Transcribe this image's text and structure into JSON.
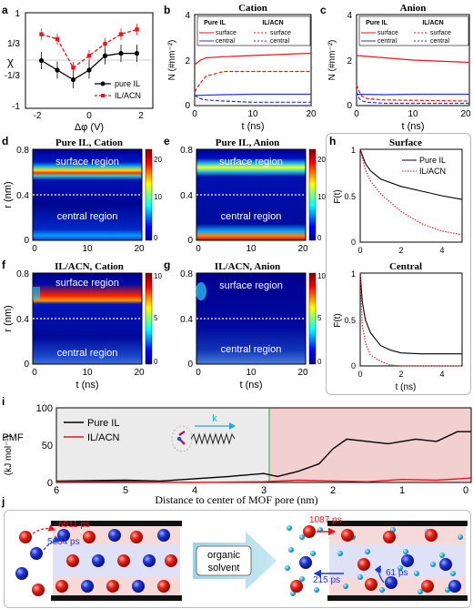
{
  "panels": {
    "a": {
      "label": "a",
      "ylabel": "χ",
      "xlabel": "Δφ (V)",
      "yticks": [
        "1",
        "1/3",
        "-1/3",
        "-1"
      ],
      "xticks": [
        "-2",
        "0",
        "2"
      ],
      "legend": [
        "pure IL",
        "IL/ACN"
      ],
      "colors": {
        "pure": "#000000",
        "acn": "#e8161a"
      }
    },
    "b": {
      "label": "b",
      "title": "Cation",
      "ylabel": "N (#nm⁻²)",
      "xlabel": "t (ns)",
      "yticks": [
        "0",
        "2",
        "4"
      ],
      "xticks": [
        "0",
        "10",
        "20"
      ],
      "legend_heads": [
        "Pure IL",
        "IL/ACN"
      ],
      "legend_rows": [
        [
          "surface",
          "surface"
        ],
        [
          "central",
          "central"
        ]
      ]
    },
    "c": {
      "label": "c",
      "title": "Anion",
      "ylabel": "N (#nm⁻²)",
      "xlabel": "t (ns)",
      "yticks": [
        "0",
        "2",
        "4"
      ],
      "xticks": [
        "0",
        "10",
        "20"
      ],
      "legend_heads": [
        "Pure IL",
        "IL/ACN"
      ],
      "legend_rows": [
        [
          "surface",
          "surface"
        ],
        [
          "central",
          "central"
        ]
      ]
    },
    "d": {
      "label": "d",
      "title": "Pure IL, Cation",
      "ylabel": "r (nm)",
      "yticks": [
        "0.8",
        "0.4",
        "0"
      ],
      "xticks": [
        "0",
        "10",
        "20"
      ],
      "region_top": "surface region",
      "region_bottom": "central region",
      "cbar_ticks": [
        "20",
        "10",
        "0"
      ]
    },
    "e": {
      "label": "e",
      "title": "Pure IL, Anion",
      "yticks": [
        "0.8",
        "0.4",
        "0"
      ],
      "xticks": [
        "0",
        "10",
        "20"
      ],
      "region_top": "surface region",
      "region_bottom": "central region",
      "cbar_ticks": [
        "20",
        "10",
        "0"
      ]
    },
    "f": {
      "label": "f",
      "title": "IL/ACN, Cation",
      "ylabel": "r (nm)",
      "xlabel": "t (ns)",
      "yticks": [
        "0.8",
        "0.4",
        "0"
      ],
      "xticks": [
        "0",
        "10",
        "20"
      ],
      "region_top": "surface region",
      "region_bottom": "central region",
      "cbar_ticks": [
        "10",
        "5",
        "0"
      ]
    },
    "g": {
      "label": "g",
      "title": "IL/ACN, Anion",
      "xlabel": "t (ns)",
      "yticks": [
        "0.8",
        "0.4",
        "0"
      ],
      "xticks": [
        "0",
        "10",
        "20"
      ],
      "region_top": "surface region",
      "region_bottom": "central region",
      "cbar_ticks": [
        "10",
        "5",
        "0"
      ]
    },
    "h": {
      "label": "h",
      "top_title": "Surface",
      "bottom_title": "Central",
      "ylabel": "F(t)",
      "xlabel": "t (ns)",
      "yticks": [
        "0",
        "0.5",
        "1"
      ],
      "xticks": [
        "0",
        "2",
        "4"
      ],
      "legend": [
        "Pure IL",
        "IL/ACN"
      ]
    },
    "i": {
      "label": "i",
      "ylabel": "PMF",
      "ylabel2": "(kJ mol⁻¹)",
      "xlabel": "Distance to center of MOF pore (nm)",
      "yticks": [
        "100",
        "50",
        "0"
      ],
      "xticks": [
        "6",
        "5",
        "4",
        "3",
        "2",
        "1",
        "0"
      ],
      "legend": [
        "Pure IL",
        "IL/ACN"
      ],
      "spring_label": "k"
    },
    "j": {
      "label": "j",
      "arrow_text_1": "organic",
      "arrow_text_2": "solvent",
      "left_times": [
        "6911 ps",
        "5684 ps"
      ],
      "right_times": [
        "1087 ps",
        "215 ps",
        "61 ps"
      ]
    }
  },
  "chart_data": [
    {
      "panel": "a",
      "type": "line",
      "x_range": [
        -2,
        2
      ],
      "y_range": [
        -1,
        1
      ],
      "series": [
        {
          "name": "pure IL",
          "x": [
            -1.5,
            -1.0,
            -0.5,
            0.0,
            0.5,
            1.0,
            1.5
          ],
          "y": [
            0.0,
            -0.2,
            -0.4,
            -0.2,
            0.1,
            0.15,
            0.15
          ]
        },
        {
          "name": "IL/ACN",
          "x": [
            -1.5,
            -1.0,
            -0.5,
            0.0,
            0.5,
            1.0,
            1.5
          ],
          "y": [
            0.55,
            0.45,
            -0.15,
            0.1,
            0.35,
            0.55,
            0.65
          ]
        }
      ]
    },
    {
      "panel": "b",
      "type": "line",
      "x_range": [
        0,
        20
      ],
      "y_range": [
        0,
        4
      ],
      "series": [
        {
          "name": "Pure IL surface",
          "x": [
            0,
            1,
            2,
            5,
            10,
            20
          ],
          "y": [
            1.8,
            2.0,
            2.1,
            2.15,
            2.2,
            2.3
          ]
        },
        {
          "name": "Pure IL central",
          "x": [
            0,
            5,
            10,
            20
          ],
          "y": [
            0.45,
            0.48,
            0.5,
            0.5
          ]
        },
        {
          "name": "IL/ACN surface",
          "x": [
            0,
            1,
            2,
            5,
            10,
            20
          ],
          "y": [
            0.6,
            1.0,
            1.3,
            1.5,
            1.5,
            1.5
          ]
        },
        {
          "name": "IL/ACN central",
          "x": [
            0,
            1,
            2,
            5,
            10,
            20
          ],
          "y": [
            0.45,
            0.3,
            0.25,
            0.2,
            0.15,
            0.15
          ]
        }
      ]
    },
    {
      "panel": "c",
      "type": "line",
      "x_range": [
        0,
        20
      ],
      "y_range": [
        0,
        4
      ],
      "series": [
        {
          "name": "Pure IL surface",
          "x": [
            0,
            5,
            10,
            20
          ],
          "y": [
            2.2,
            2.1,
            2.0,
            1.9
          ]
        },
        {
          "name": "Pure IL central",
          "x": [
            0,
            5,
            10,
            20
          ],
          "y": [
            0.5,
            0.48,
            0.5,
            0.5
          ]
        },
        {
          "name": "IL/ACN surface",
          "x": [
            0,
            0.5,
            1,
            2,
            5,
            20
          ],
          "y": [
            0.9,
            0.6,
            0.4,
            0.3,
            0.25,
            0.2
          ]
        },
        {
          "name": "IL/ACN central",
          "x": [
            0,
            0.5,
            1,
            2,
            5,
            20
          ],
          "y": [
            0.6,
            0.3,
            0.2,
            0.15,
            0.1,
            0.1
          ]
        }
      ]
    },
    {
      "panel": "h-surface",
      "type": "line",
      "x_range": [
        0,
        5
      ],
      "y_range": [
        0,
        1
      ],
      "series": [
        {
          "name": "Pure IL",
          "x": [
            0,
            0.25,
            0.5,
            1,
            2,
            3,
            4,
            5
          ],
          "y": [
            1.0,
            0.85,
            0.77,
            0.68,
            0.6,
            0.55,
            0.5,
            0.46
          ]
        },
        {
          "name": "IL/ACN",
          "x": [
            0,
            0.25,
            0.5,
            1,
            2,
            3,
            4,
            5
          ],
          "y": [
            1.0,
            0.78,
            0.66,
            0.52,
            0.33,
            0.2,
            0.12,
            0.08
          ]
        }
      ]
    },
    {
      "panel": "h-central",
      "type": "line",
      "x_range": [
        0,
        5
      ],
      "y_range": [
        0,
        1
      ],
      "series": [
        {
          "name": "Pure IL",
          "x": [
            0,
            0.1,
            0.25,
            0.5,
            1,
            1.5,
            2,
            3,
            5
          ],
          "y": [
            1.0,
            0.7,
            0.5,
            0.36,
            0.22,
            0.17,
            0.14,
            0.13,
            0.13
          ]
        },
        {
          "name": "IL/ACN",
          "x": [
            0,
            0.1,
            0.25,
            0.5,
            1,
            1.5,
            2,
            5
          ],
          "y": [
            1.0,
            0.45,
            0.25,
            0.12,
            0.05,
            0.01,
            0.0,
            0.0
          ]
        }
      ]
    },
    {
      "panel": "i",
      "type": "line",
      "x_range": [
        6,
        0
      ],
      "y_range": [
        0,
        100
      ],
      "series": [
        {
          "name": "Pure IL",
          "x": [
            6,
            5,
            4.5,
            4,
            3.5,
            3,
            2.8,
            2.5,
            2.2,
            2.0,
            1.8,
            1.5,
            1.2,
            1.0,
            0.8,
            0.5,
            0.2,
            0
          ],
          "y": [
            2,
            3,
            2,
            5,
            8,
            12,
            8,
            15,
            25,
            45,
            58,
            55,
            52,
            55,
            58,
            55,
            68,
            68
          ]
        },
        {
          "name": "IL/ACN",
          "x": [
            6,
            5,
            4,
            3,
            2.5,
            2,
            1.5,
            1,
            0.5,
            0
          ],
          "y": [
            1,
            1,
            0,
            1,
            3,
            2,
            1,
            4,
            3,
            6
          ]
        }
      ]
    }
  ]
}
